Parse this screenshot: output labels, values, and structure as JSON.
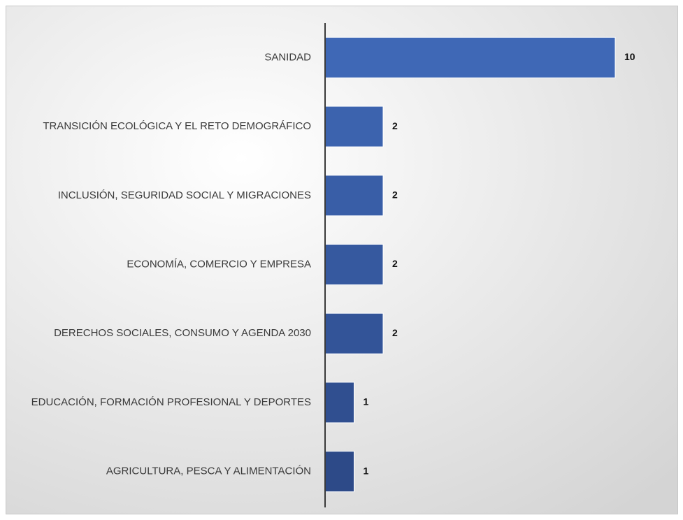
{
  "chart_data": {
    "type": "bar",
    "orientation": "horizontal",
    "categories": [
      "SANIDAD",
      "TRANSICIÓN ECOLÓGICA Y EL RETO DEMOGRÁFICO",
      "INCLUSIÓN, SEGURIDAD SOCIAL Y MIGRACIONES",
      "ECONOMÍA, COMERCIO Y EMPRESA",
      "DERECHOS SOCIALES, CONSUMO Y AGENDA 2030",
      "EDUCACIÓN, FORMACIÓN PROFESIONAL Y DEPORTES",
      "AGRICULTURA, PESCA Y ALIMENTACIÓN"
    ],
    "values": [
      10,
      2,
      2,
      2,
      2,
      1,
      1
    ],
    "colors": [
      "#3f68b6",
      "#3c63ae",
      "#395ea7",
      "#36599f",
      "#335498",
      "#304f90",
      "#2d4a88"
    ]
  }
}
